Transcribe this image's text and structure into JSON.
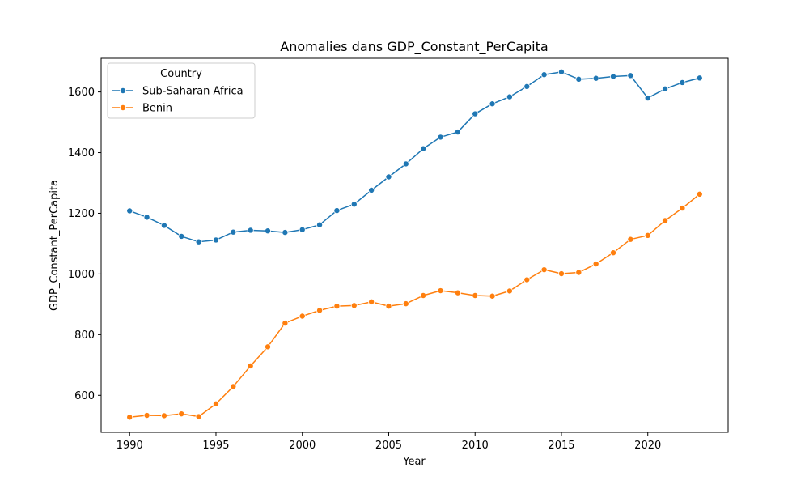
{
  "chart_data": {
    "type": "line",
    "title": "Anomalies dans GDP_Constant_PerCapita",
    "xlabel": "Year",
    "ylabel": "GDP_Constant_PerCapita",
    "xlim": [
      1988.35,
      2024.65
    ],
    "ylim": [
      478,
      1711
    ],
    "x_ticks": [
      1990,
      1995,
      2000,
      2005,
      2010,
      2015,
      2020
    ],
    "y_ticks": [
      600,
      800,
      1000,
      1200,
      1400,
      1600
    ],
    "grid": false,
    "legend": {
      "title": "Country",
      "placement": "top-left"
    },
    "x": [
      1990,
      1991,
      1992,
      1993,
      1994,
      1995,
      1996,
      1997,
      1998,
      1999,
      2000,
      2001,
      2002,
      2003,
      2004,
      2005,
      2006,
      2007,
      2008,
      2009,
      2010,
      2011,
      2012,
      2013,
      2014,
      2015,
      2016,
      2017,
      2018,
      2019,
      2020,
      2021,
      2022,
      2023
    ],
    "series": [
      {
        "name": "Sub-Saharan Africa",
        "color": "#1f77b4",
        "marker": "circle",
        "values": [
          1208,
          1187,
          1160,
          1124,
          1106,
          1112,
          1138,
          1144,
          1142,
          1137,
          1146,
          1162,
          1209,
          1230,
          1276,
          1320,
          1363,
          1413,
          1451,
          1468,
          1528,
          1561,
          1584,
          1618,
          1657,
          1666,
          1642,
          1645,
          1651,
          1654,
          1580,
          1610,
          1631,
          1646
        ]
      },
      {
        "name": "Benin",
        "color": "#ff7f0e",
        "marker": "circle",
        "values": [
          528,
          534,
          533,
          539,
          530,
          572,
          629,
          697,
          760,
          838,
          861,
          880,
          894,
          896,
          908,
          894,
          902,
          929,
          945,
          938,
          929,
          927,
          944,
          981,
          1014,
          1001,
          1005,
          1033,
          1070,
          1114,
          1127,
          1176,
          1217,
          1263
        ]
      }
    ]
  }
}
